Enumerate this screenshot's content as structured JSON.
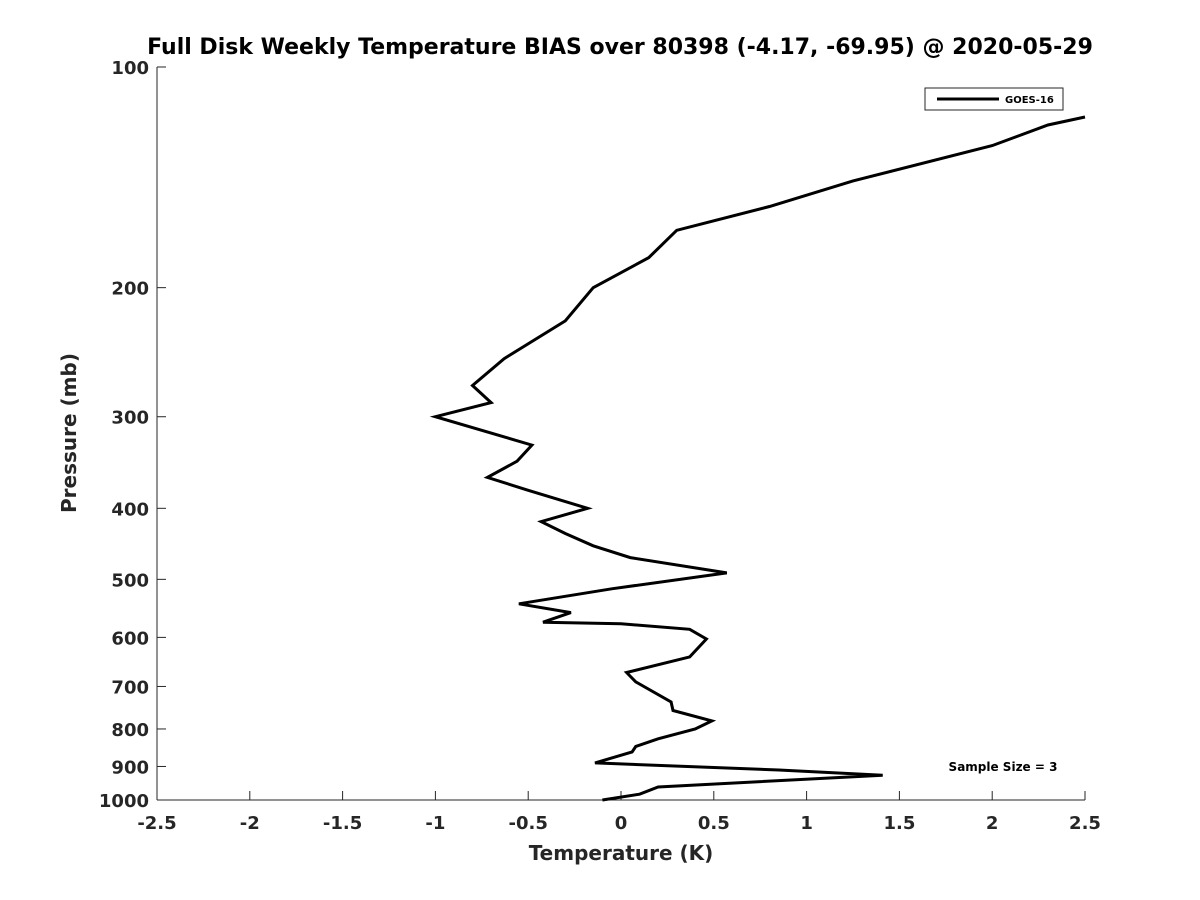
{
  "chart_data": {
    "type": "line",
    "title": "Full Disk Weekly Temperature BIAS over 80398 (-4.17, -69.95) @ 2020-05-29",
    "xlabel": "Temperature (K)",
    "ylabel": "Pressure (mb)",
    "xlim": [
      -2.5,
      2.5
    ],
    "ylim": [
      100,
      1000
    ],
    "yscale": "log",
    "y_reversed": true,
    "x_ticks": [
      -2.5,
      -2,
      -1.5,
      -1,
      -0.5,
      0,
      0.5,
      1,
      1.5,
      2,
      2.5
    ],
    "x_tick_labels": [
      "-2.5",
      "-2",
      "-1.5",
      "-1",
      "-0.5",
      "0",
      "0.5",
      "1",
      "1.5",
      "2",
      "2.5"
    ],
    "y_ticks": [
      100,
      200,
      300,
      400,
      500,
      600,
      700,
      800,
      900,
      1000
    ],
    "y_tick_labels": [
      "100",
      "200",
      "300",
      "400",
      "500",
      "600",
      "700",
      "800",
      "900",
      "1000"
    ],
    "legend": {
      "placement": "top-right",
      "entries": [
        "GOES-16"
      ]
    },
    "annotation": "Sample Size = 3",
    "colors": {
      "line": "#000000",
      "axis": "#262626"
    },
    "series": [
      {
        "name": "GOES-16",
        "points": [
          {
            "t": 2.5,
            "p": 117
          },
          {
            "t": 2.3,
            "p": 120
          },
          {
            "t": 2.0,
            "p": 128
          },
          {
            "t": 1.25,
            "p": 143
          },
          {
            "t": 0.8,
            "p": 155
          },
          {
            "t": 0.3,
            "p": 167
          },
          {
            "t": 0.15,
            "p": 182
          },
          {
            "t": -0.15,
            "p": 200
          },
          {
            "t": -0.3,
            "p": 222
          },
          {
            "t": -0.63,
            "p": 250
          },
          {
            "t": -0.8,
            "p": 272
          },
          {
            "t": -0.7,
            "p": 287
          },
          {
            "t": -1.0,
            "p": 300
          },
          {
            "t": -0.48,
            "p": 328
          },
          {
            "t": -0.56,
            "p": 345
          },
          {
            "t": -0.72,
            "p": 363
          },
          {
            "t": -0.5,
            "p": 378
          },
          {
            "t": -0.18,
            "p": 400
          },
          {
            "t": -0.43,
            "p": 417
          },
          {
            "t": -0.3,
            "p": 433
          },
          {
            "t": -0.15,
            "p": 450
          },
          {
            "t": 0.05,
            "p": 467
          },
          {
            "t": 0.57,
            "p": 490
          },
          {
            "t": -0.05,
            "p": 515
          },
          {
            "t": -0.55,
            "p": 540
          },
          {
            "t": -0.27,
            "p": 555
          },
          {
            "t": -0.42,
            "p": 572
          },
          {
            "t": 0.0,
            "p": 575
          },
          {
            "t": 0.37,
            "p": 585
          },
          {
            "t": 0.46,
            "p": 603
          },
          {
            "t": 0.37,
            "p": 638
          },
          {
            "t": 0.03,
            "p": 670
          },
          {
            "t": 0.08,
            "p": 690
          },
          {
            "t": 0.27,
            "p": 735
          },
          {
            "t": 0.28,
            "p": 755
          },
          {
            "t": 0.49,
            "p": 780
          },
          {
            "t": 0.4,
            "p": 800
          },
          {
            "t": 0.2,
            "p": 825
          },
          {
            "t": 0.08,
            "p": 845
          },
          {
            "t": 0.06,
            "p": 860
          },
          {
            "t": -0.14,
            "p": 890
          },
          {
            "t": 0.85,
            "p": 910
          },
          {
            "t": 1.41,
            "p": 925
          },
          {
            "t": 0.2,
            "p": 960
          },
          {
            "t": 0.1,
            "p": 982
          },
          {
            "t": -0.1,
            "p": 1000
          }
        ]
      }
    ]
  }
}
